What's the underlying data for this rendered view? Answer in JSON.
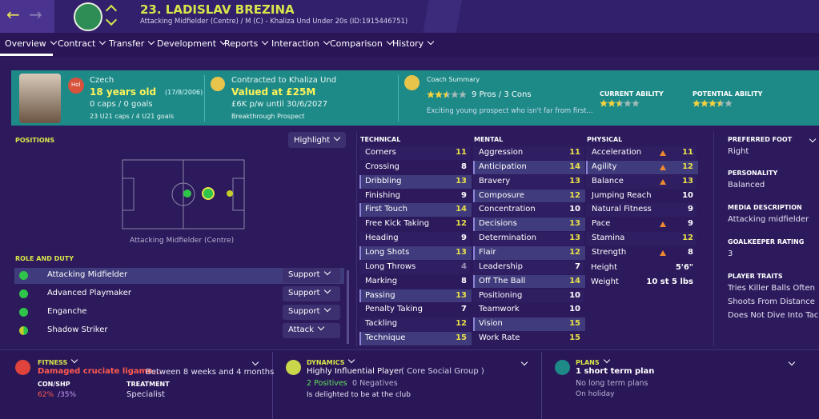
{
  "header": {
    "name": "23. LADISLAV BREZINA",
    "subtitle": "Attacking Midfielder (Centre) / M (C) - Khaliza Und Under 20s (ID:1915446751)"
  },
  "nav": [
    "Overview",
    "Contract",
    "Transfer",
    "Development",
    "Reports",
    "Interaction",
    "Comparison",
    "History"
  ],
  "info": {
    "badge": "Hol",
    "nationality": "Czech",
    "age": "18 years old",
    "dob": "(17/8/2006)",
    "caps": "0 caps / 0 goals",
    "u21": "23 U21 caps / 4 U21 goals",
    "contract": "Contracted to Khaliza Und",
    "value": "Valued at £25M",
    "wage": "£6K p/w until 30/6/2027",
    "status": "Breakthrough Prospect",
    "coach_label": "Coach Summary",
    "coach_stars": 2.5,
    "pros_cons": "9 Pros / 3 Cons",
    "coach_text": "Exciting young prospect who isn't far from first...",
    "current_label": "CURRENT ABILITY",
    "current_stars": 2.5,
    "potential_label": "POTENTIAL ABILITY",
    "potential_stars": 3.5
  },
  "positions": {
    "title": "POSITIONS",
    "highlight": "Highlight",
    "pitch_label": "Attacking Midfielder (Centre)",
    "role_title": "ROLE AND DUTY",
    "roles": [
      {
        "name": "Attacking Midfielder",
        "duty": "Support"
      },
      {
        "name": "Advanced Playmaker",
        "duty": "Support"
      },
      {
        "name": "Enganche",
        "duty": "Support"
      },
      {
        "name": "Shadow Striker",
        "duty": "Attack"
      }
    ]
  },
  "attributes": [
    {
      "title": "TECHNICAL",
      "items": [
        {
          "name": "Corners",
          "value": 11
        },
        {
          "name": "Crossing",
          "value": 8
        },
        {
          "name": "Dribbling",
          "value": 13,
          "key": true
        },
        {
          "name": "Finishing",
          "value": 9
        },
        {
          "name": "First Touch",
          "value": 14,
          "key": true
        },
        {
          "name": "Free Kick Taking",
          "value": 12
        },
        {
          "name": "Heading",
          "value": 9
        },
        {
          "name": "Long Shots",
          "value": 13,
          "key": true
        },
        {
          "name": "Long Throws",
          "value": 4
        },
        {
          "name": "Marking",
          "value": 8
        },
        {
          "name": "Passing",
          "value": 13,
          "key": true
        },
        {
          "name": "Penalty Taking",
          "value": 7
        },
        {
          "name": "Tackling",
          "value": 12
        },
        {
          "name": "Technique",
          "value": 15,
          "key": true
        }
      ]
    },
    {
      "title": "MENTAL",
      "items": [
        {
          "name": "Aggression",
          "value": 11
        },
        {
          "name": "Anticipation",
          "value": 14,
          "key": true
        },
        {
          "name": "Bravery",
          "value": 13
        },
        {
          "name": "Composure",
          "value": 12,
          "key": true
        },
        {
          "name": "Concentration",
          "value": 10
        },
        {
          "name": "Decisions",
          "value": 13,
          "key": true
        },
        {
          "name": "Determination",
          "value": 13
        },
        {
          "name": "Flair",
          "value": 12,
          "key": true
        },
        {
          "name": "Leadership",
          "value": 7
        },
        {
          "name": "Off The Ball",
          "value": 14,
          "key": true
        },
        {
          "name": "Positioning",
          "value": 10
        },
        {
          "name": "Teamwork",
          "value": 10
        },
        {
          "name": "Vision",
          "value": 15,
          "key": true
        },
        {
          "name": "Work Rate",
          "value": 15
        }
      ]
    },
    {
      "title": "PHYSICAL",
      "items": [
        {
          "name": "Acceleration",
          "value": 11,
          "injured": true
        },
        {
          "name": "Agility",
          "value": 12,
          "injured": true,
          "key": true
        },
        {
          "name": "Balance",
          "value": 13,
          "injured": true
        },
        {
          "name": "Jumping Reach",
          "value": 10
        },
        {
          "name": "Natural Fitness",
          "value": 9
        },
        {
          "name": "Pace",
          "value": 9,
          "injured": true
        },
        {
          "name": "Stamina",
          "value": 12
        },
        {
          "name": "Strength",
          "value": 8,
          "injured": true
        }
      ],
      "extra": [
        {
          "name": "Height",
          "value": "5'6\""
        },
        {
          "name": "Weight",
          "value": "10 st 5 lbs"
        }
      ]
    }
  ],
  "sidebar": [
    {
      "title": "PREFERRED FOOT",
      "lines": [
        "Right"
      ]
    },
    {
      "title": "PERSONALITY",
      "lines": [
        "Balanced"
      ]
    },
    {
      "title": "MEDIA DESCRIPTION",
      "lines": [
        "Attacking midfielder"
      ]
    },
    {
      "title": "GOALKEEPER RATING",
      "lines": [
        3
      ]
    },
    {
      "title": "PLAYER TRAITS",
      "lines": [
        "Tries Killer Balls Often",
        "Shoots From Distance",
        "Does Not Dive Into Tackles"
      ]
    }
  ],
  "fitness": {
    "title": "FITNESS",
    "injury": "Damaged cruciate ligame...",
    "duration": "Between 8 weeks and 4 months",
    "con_shp_label": "CON/SHP",
    "con": "62%",
    "shp": "/35%",
    "treatment_label": "TREATMENT",
    "treatment": "Specialist"
  },
  "dynamics": {
    "title": "DYNAMICS",
    "line": "Highly Influential Player",
    "group": "( Core Social Group )",
    "positives": "2 Positives",
    "negatives": "0 Negatives",
    "text": "Is delighted to be at the club"
  },
  "plans": {
    "title": "PLANS",
    "line": "1 short term plan",
    "long": "No long term plans",
    "status": "On holiday"
  }
}
